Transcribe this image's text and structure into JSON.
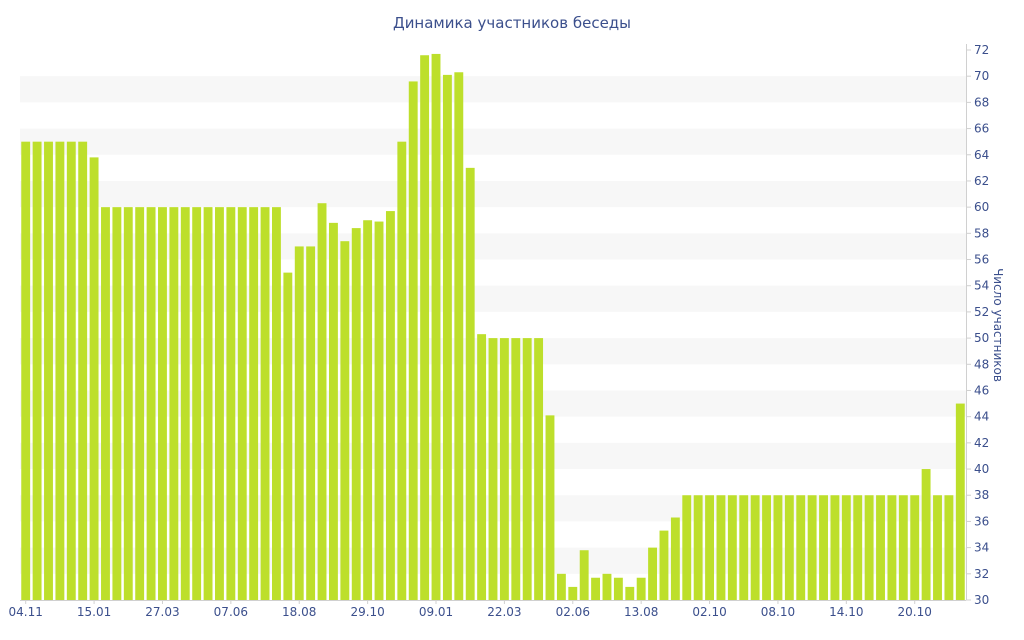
{
  "chart_data": {
    "type": "bar",
    "title": "Динамика участников беседы",
    "xlabel": "",
    "ylabel": "Число участников",
    "y_axis_side": "right",
    "ylim": [
      30,
      72
    ],
    "y_ticks": [
      30,
      32,
      34,
      36,
      38,
      40,
      42,
      44,
      46,
      48,
      50,
      52,
      54,
      56,
      58,
      60,
      62,
      64,
      66,
      68,
      70,
      72
    ],
    "x_tick_labels": [
      {
        "index": 0,
        "label": "04.11"
      },
      {
        "index": 6,
        "label": "15.01"
      },
      {
        "index": 12,
        "label": "27.03"
      },
      {
        "index": 18,
        "label": "07.06"
      },
      {
        "index": 24,
        "label": "18.08"
      },
      {
        "index": 30,
        "label": "29.10"
      },
      {
        "index": 36,
        "label": "09.01"
      },
      {
        "index": 42,
        "label": "22.03"
      },
      {
        "index": 48,
        "label": "02.06"
      },
      {
        "index": 54,
        "label": "13.08"
      },
      {
        "index": 60,
        "label": "02.10"
      },
      {
        "index": 66,
        "label": "08.10"
      },
      {
        "index": 72,
        "label": "14.10"
      },
      {
        "index": 78,
        "label": "20.10"
      }
    ],
    "values": [
      65,
      65,
      65,
      65,
      65,
      65,
      63.8,
      60,
      60,
      60,
      60,
      60,
      60,
      60,
      60,
      60,
      60,
      60,
      60,
      60,
      60,
      60,
      60,
      55,
      57,
      57,
      60.3,
      58.8,
      57.4,
      58.4,
      59,
      58.9,
      59.7,
      65,
      69.6,
      71.6,
      71.7,
      70.1,
      70.3,
      63,
      50.3,
      50,
      50,
      50,
      50,
      50,
      44.1,
      32,
      31,
      33.8,
      31.7,
      32,
      31.7,
      31,
      31.7,
      34,
      35.3,
      36.3,
      38,
      38,
      38,
      38,
      38,
      38,
      38,
      38,
      38,
      38,
      38,
      38,
      38,
      38,
      38,
      38,
      38,
      38,
      38,
      38,
      38,
      40,
      38,
      38,
      45
    ],
    "colors": {
      "bar": "#bddf2b",
      "band": "#f7f7f7",
      "text": "#3b4f8c",
      "axis": "#d0d0d0"
    },
    "grid": true,
    "legend": "none"
  }
}
